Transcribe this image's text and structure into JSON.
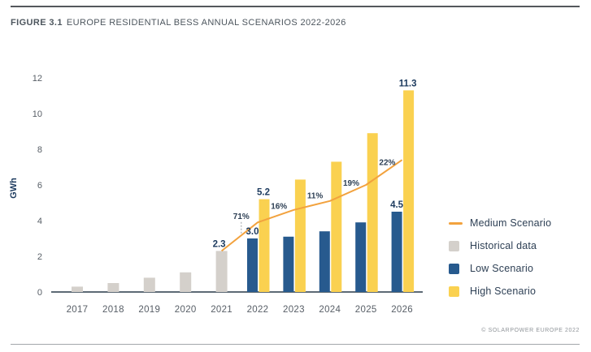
{
  "figure": {
    "label": "FIGURE 3.1",
    "title": "EUROPE RESIDENTIAL BESS ANNUAL SCENARIOS 2022-2026"
  },
  "footer": {
    "credit": "© SOLARPOWER EUROPE 2022"
  },
  "chart_data": {
    "type": "bar",
    "title": "FIGURE 3.1 EUROPE RESIDENTIAL BESS ANNUAL SCENARIOS 2022-2026",
    "xlabel": "",
    "ylabel": "GWh",
    "ylim": [
      0,
      12
    ],
    "yticks": [
      0,
      2,
      4,
      6,
      8,
      10,
      12
    ],
    "grid": false,
    "legend_position": "right",
    "categories": [
      "2017",
      "2018",
      "2019",
      "2020",
      "2021",
      "2022",
      "2023",
      "2024",
      "2025",
      "2026"
    ],
    "series": [
      {
        "name": "Historical data",
        "type": "bar",
        "color": "#d4d0cb",
        "values": [
          0.3,
          0.5,
          0.8,
          1.1,
          2.3,
          null,
          null,
          null,
          null,
          null
        ]
      },
      {
        "name": "Low Scenario",
        "type": "bar",
        "color": "#275a8e",
        "values": [
          null,
          null,
          null,
          null,
          null,
          3.0,
          3.1,
          3.4,
          3.9,
          4.5
        ]
      },
      {
        "name": "High Scenario",
        "type": "bar",
        "color": "#fad150",
        "values": [
          null,
          null,
          null,
          null,
          null,
          5.2,
          6.3,
          7.3,
          8.9,
          11.3
        ]
      },
      {
        "name": "Medium Scenario",
        "type": "line",
        "color": "#f2a23e",
        "values": [
          null,
          null,
          null,
          null,
          2.3,
          3.9,
          4.6,
          5.1,
          6.0,
          7.4
        ]
      }
    ],
    "bar_labels": [
      {
        "category": "2021",
        "series": "Historical data",
        "text": "2.3"
      },
      {
        "category": "2022",
        "series": "Low Scenario",
        "text": "3.0"
      },
      {
        "category": "2022",
        "series": "High Scenario",
        "text": "5.2"
      },
      {
        "category": "2026",
        "series": "Low Scenario",
        "text": "4.5"
      },
      {
        "category": "2026",
        "series": "High Scenario",
        "text": "11.3"
      }
    ],
    "growth_labels": [
      {
        "segment": "2021-2022",
        "text": "71%",
        "connector": true
      },
      {
        "segment": "2022-2023",
        "text": "16%",
        "connector": false
      },
      {
        "segment": "2023-2024",
        "text": "11%",
        "connector": false
      },
      {
        "segment": "2024-2025",
        "text": "19%",
        "connector": false
      },
      {
        "segment": "2025-2026",
        "text": "22%",
        "connector": false
      }
    ],
    "legend": [
      {
        "label": "Medium Scenario",
        "swatch": "line",
        "color": "#f2a23e"
      },
      {
        "label": "Historical data",
        "swatch": "square",
        "color": "#d4d0cb"
      },
      {
        "label": "Low Scenario",
        "swatch": "square",
        "color": "#275a8e"
      },
      {
        "label": "High Scenario",
        "swatch": "square",
        "color": "#fad150"
      }
    ],
    "colors": {
      "value_label": "#1c3a5e",
      "growth_label": "#2d3f54",
      "tick_label": "#575e66",
      "axis_line": "#5d6a75",
      "connector": "#9aa0a6"
    }
  }
}
